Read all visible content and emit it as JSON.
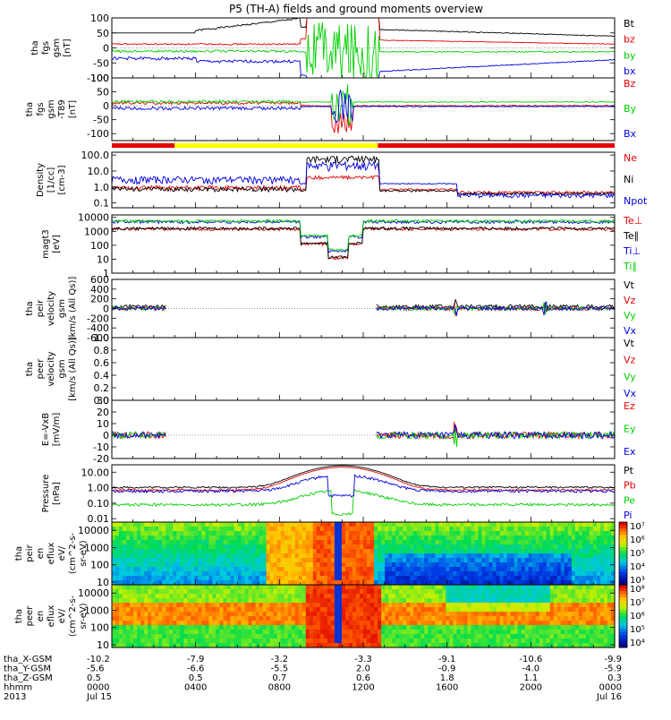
{
  "title": "P5 (TH-A) fields and ground moments overview",
  "colors": {
    "black": "#000000",
    "red": "#e60000",
    "green": "#00d000",
    "blue": "#0000dd",
    "yellow": "#ffff00"
  },
  "time_axis": {
    "ticks": [
      "0000",
      "0400",
      "0800",
      "1200",
      "1600",
      "2000"
    ],
    "start_date": "Jul 15",
    "end_date": "Jul 16",
    "ephemeris": [
      {
        "label": "tha_X-GSM",
        "values": [
          "-10.2",
          "-7.9",
          "-3.2",
          "-3.3",
          "-9.1",
          "-10.6",
          "-9.9"
        ]
      },
      {
        "label": "tha_Y-GSM",
        "values": [
          "-5.6",
          "-6.6",
          "-5.5",
          "2.0",
          "-0.9",
          "-4.0",
          "-5.9"
        ]
      },
      {
        "label": "tha_Z-GSM",
        "values": [
          "0.5",
          "0.5",
          "0.7",
          "0.6",
          "1.8",
          "1.1",
          "0.3"
        ]
      },
      {
        "label": "hhmm",
        "values": [
          "0000",
          "0400",
          "0800",
          "1200",
          "1600",
          "2000",
          "0000"
        ]
      },
      {
        "label": "2013",
        "values": [
          "Jul 15",
          "",
          "",
          "",
          "",
          "",
          "Jul 16"
        ]
      }
    ]
  },
  "chart_data": [
    {
      "id": "fgs",
      "type": "line",
      "ylabel": [
        "tha",
        "fgs",
        "gsm",
        "[nT]"
      ],
      "ylim": [
        -100,
        100
      ],
      "yticks": [
        "100",
        "50",
        "0",
        "-50",
        "-100"
      ],
      "series": [
        {
          "name": "Bt",
          "color": "#000000"
        },
        {
          "name": "bz",
          "color": "#e60000"
        },
        {
          "name": "by",
          "color": "#00d000"
        },
        {
          "name": "bx",
          "color": "#0000dd"
        }
      ]
    },
    {
      "id": "fgs_t89",
      "type": "line",
      "ylabel": [
        "tha",
        "fgs",
        "gsm",
        "-T89",
        "[nT]"
      ],
      "ylim": [
        -125,
        100
      ],
      "yticks": [
        "100",
        "50",
        "0",
        "-50",
        "-100"
      ],
      "series": [
        {
          "name": "Bz",
          "color": "#e60000"
        },
        {
          "name": "By",
          "color": "#00d000"
        },
        {
          "name": "Bx",
          "color": "#0000dd"
        }
      ]
    },
    {
      "id": "density",
      "type": "line",
      "scale": "log",
      "ylabel": [
        "Density",
        "[1/cc]",
        "[cm-3]"
      ],
      "ylim": [
        0.05,
        150
      ],
      "yticks": [
        "100.0",
        "10.0",
        "1.0",
        "0.1"
      ],
      "series": [
        {
          "name": "Ne",
          "color": "#e60000"
        },
        {
          "name": "Ni",
          "color": "#000000"
        },
        {
          "name": "Npot",
          "color": "#0000dd"
        }
      ]
    },
    {
      "id": "temperature",
      "type": "line",
      "scale": "log",
      "ylabel": [
        "magt3",
        "[eV]"
      ],
      "ylim": [
        1,
        15000
      ],
      "yticks": [
        "10000",
        "1000",
        "100",
        "10",
        "1"
      ],
      "series": [
        {
          "name": "Te⊥",
          "color": "#e60000"
        },
        {
          "name": "Te∥",
          "color": "#000000"
        },
        {
          "name": "Ti⊥",
          "color": "#0000dd"
        },
        {
          "name": "Ti∥",
          "color": "#00d000"
        }
      ]
    },
    {
      "id": "peir_velocity",
      "type": "line",
      "ylabel": [
        "tha",
        "peir",
        "velocity",
        "gsm",
        "[km/s (All Qs)]"
      ],
      "ylim": [
        -600,
        600
      ],
      "yticks": [
        "600",
        "400",
        "200",
        "0",
        "-200",
        "-400",
        "-600"
      ],
      "series": [
        {
          "name": "Vt",
          "color": "#000000"
        },
        {
          "name": "Vz",
          "color": "#e60000"
        },
        {
          "name": "Vy",
          "color": "#00d000"
        },
        {
          "name": "Vx",
          "color": "#0000dd"
        }
      ]
    },
    {
      "id": "peer_velocity",
      "type": "line",
      "ylabel": [
        "tha",
        "peer",
        "velocity",
        "gsm",
        "[km/s (All Qs)]"
      ],
      "ylim": [
        0,
        1
      ],
      "yticks": [
        "1.0",
        "0.8",
        "0.6",
        "0.4",
        "0.2",
        "0.0"
      ],
      "series": [
        {
          "name": "Vt",
          "color": "#000000"
        },
        {
          "name": "Vz",
          "color": "#e60000"
        },
        {
          "name": "Vy",
          "color": "#00d000"
        },
        {
          "name": "Vx",
          "color": "#0000dd"
        }
      ]
    },
    {
      "id": "efield",
      "type": "line",
      "ylabel": [
        "E=-VxB",
        "[mV/m]"
      ],
      "ylim": [
        -20,
        30
      ],
      "yticks": [
        "30",
        "20",
        "10",
        "0",
        "-10",
        "-20"
      ],
      "series": [
        {
          "name": "Ez",
          "color": "#e60000"
        },
        {
          "name": "Ey",
          "color": "#00d000"
        },
        {
          "name": "Ex",
          "color": "#0000dd"
        }
      ]
    },
    {
      "id": "pressure",
      "type": "line",
      "scale": "log",
      "ylabel": [
        "Pressure",
        "[nPa]"
      ],
      "ylim": [
        0.006,
        30
      ],
      "yticks": [
        "10.00",
        "1.00",
        "0.10",
        "0.01"
      ],
      "series": [
        {
          "name": "Pt",
          "color": "#000000"
        },
        {
          "name": "Pb",
          "color": "#e60000"
        },
        {
          "name": "Pe",
          "color": "#00d000"
        },
        {
          "name": "Pi",
          "color": "#0000dd"
        }
      ]
    },
    {
      "id": "peir_eflux",
      "type": "heatmap",
      "scale": "log",
      "ylabel": [
        "tha",
        "peir",
        "en",
        "eflux",
        "eV/",
        "(cm^2-s-",
        "sr-eV)"
      ],
      "ylim": [
        7,
        30000
      ],
      "yticks": [
        "10000",
        "1000",
        "100",
        "10"
      ],
      "colorbar": {
        "labels": [
          "10⁷",
          "10⁶",
          "10⁵",
          "10⁴",
          "10³"
        ]
      }
    },
    {
      "id": "peer_eflux",
      "type": "heatmap",
      "scale": "log",
      "ylabel": [
        "tha",
        "peer",
        "en",
        "eflux",
        "eV/",
        "(cm^2-s-",
        "sr-eV)"
      ],
      "ylim": [
        7,
        30000
      ],
      "yticks": [
        "10000",
        "1000",
        "100",
        "10"
      ],
      "colorbar": {
        "labels": [
          "10⁸",
          "10⁷",
          "10⁶",
          "10⁵",
          "10⁴"
        ]
      }
    }
  ]
}
